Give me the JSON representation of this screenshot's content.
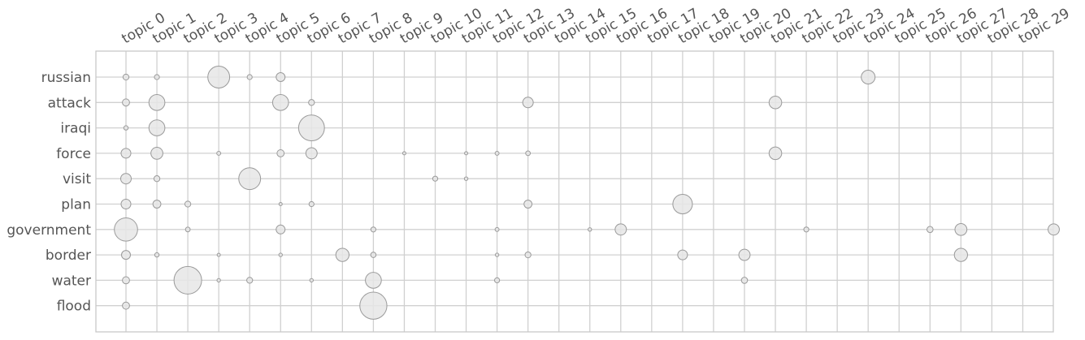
{
  "chart_data": {
    "type": "scatter",
    "subtype": "bubble-matrix",
    "title": "",
    "xlabel": "",
    "ylabel": "",
    "grid": true,
    "legend": "none",
    "colors": {
      "bubble_fill": "#e6e6e6",
      "bubble_stroke": "#9a9a9a",
      "grid": "#d0d0d0",
      "text": "#555555"
    },
    "topics": [
      "topic 0",
      "topic 1",
      "topic 2",
      "topic 3",
      "topic 4",
      "topic 5",
      "topic 6",
      "topic 7",
      "topic 8",
      "topic 9",
      "topic 10",
      "topic 11",
      "topic 12",
      "topic 13",
      "topic 14",
      "topic 15",
      "topic 16",
      "topic 17",
      "topic 18",
      "topic 19",
      "topic 20",
      "topic 21",
      "topic 22",
      "topic 23",
      "topic 24",
      "topic 25",
      "topic 26",
      "topic 27",
      "topic 28",
      "topic 29"
    ],
    "words": [
      "russian",
      "attack",
      "iraqi",
      "force",
      "visit",
      "plan",
      "government",
      "border",
      "water",
      "flood"
    ],
    "points": [
      {
        "word": "russian",
        "topic": 0,
        "weight": 0.011
      },
      {
        "word": "russian",
        "topic": 1,
        "weight": 0.008
      },
      {
        "word": "russian",
        "topic": 3,
        "weight": 0.15
      },
      {
        "word": "russian",
        "topic": 4,
        "weight": 0.008
      },
      {
        "word": "russian",
        "topic": 5,
        "weight": 0.025
      },
      {
        "word": "russian",
        "topic": 24,
        "weight": 0.06
      },
      {
        "word": "attack",
        "topic": 0,
        "weight": 0.016
      },
      {
        "word": "attack",
        "topic": 1,
        "weight": 0.08
      },
      {
        "word": "attack",
        "topic": 5,
        "weight": 0.08
      },
      {
        "word": "attack",
        "topic": 6,
        "weight": 0.011
      },
      {
        "word": "attack",
        "topic": 13,
        "weight": 0.035
      },
      {
        "word": "attack",
        "topic": 21,
        "weight": 0.05
      },
      {
        "word": "iraqi",
        "topic": 0,
        "weight": 0.006
      },
      {
        "word": "iraqi",
        "topic": 1,
        "weight": 0.08
      },
      {
        "word": "iraqi",
        "topic": 6,
        "weight": 0.21
      },
      {
        "word": "force",
        "topic": 0,
        "weight": 0.03
      },
      {
        "word": "force",
        "topic": 1,
        "weight": 0.045
      },
      {
        "word": "force",
        "topic": 3,
        "weight": 0.005
      },
      {
        "word": "force",
        "topic": 5,
        "weight": 0.016
      },
      {
        "word": "force",
        "topic": 6,
        "weight": 0.04
      },
      {
        "word": "force",
        "topic": 9,
        "weight": 0.002
      },
      {
        "word": "force",
        "topic": 11,
        "weight": 0.002
      },
      {
        "word": "force",
        "topic": 12,
        "weight": 0.005
      },
      {
        "word": "force",
        "topic": 13,
        "weight": 0.007
      },
      {
        "word": "force",
        "topic": 21,
        "weight": 0.05
      },
      {
        "word": "visit",
        "topic": 0,
        "weight": 0.035
      },
      {
        "word": "visit",
        "topic": 1,
        "weight": 0.011
      },
      {
        "word": "visit",
        "topic": 4,
        "weight": 0.15
      },
      {
        "word": "visit",
        "topic": 10,
        "weight": 0.008
      },
      {
        "word": "visit",
        "topic": 11,
        "weight": 0.004
      },
      {
        "word": "plan",
        "topic": 0,
        "weight": 0.03
      },
      {
        "word": "plan",
        "topic": 1,
        "weight": 0.02
      },
      {
        "word": "plan",
        "topic": 2,
        "weight": 0.011
      },
      {
        "word": "plan",
        "topic": 5,
        "weight": 0.003
      },
      {
        "word": "plan",
        "topic": 6,
        "weight": 0.008
      },
      {
        "word": "plan",
        "topic": 13,
        "weight": 0.02
      },
      {
        "word": "plan",
        "topic": 18,
        "weight": 0.12
      },
      {
        "word": "government",
        "topic": 0,
        "weight": 0.17
      },
      {
        "word": "government",
        "topic": 2,
        "weight": 0.007
      },
      {
        "word": "government",
        "topic": 5,
        "weight": 0.025
      },
      {
        "word": "government",
        "topic": 8,
        "weight": 0.008
      },
      {
        "word": "government",
        "topic": 12,
        "weight": 0.005
      },
      {
        "word": "government",
        "topic": 15,
        "weight": 0.004
      },
      {
        "word": "government",
        "topic": 16,
        "weight": 0.04
      },
      {
        "word": "government",
        "topic": 22,
        "weight": 0.008
      },
      {
        "word": "government",
        "topic": 26,
        "weight": 0.012
      },
      {
        "word": "government",
        "topic": 27,
        "weight": 0.045
      },
      {
        "word": "government",
        "topic": 30,
        "weight": 0.04
      },
      {
        "word": "border",
        "topic": 0,
        "weight": 0.025
      },
      {
        "word": "border",
        "topic": 1,
        "weight": 0.006
      },
      {
        "word": "border",
        "topic": 3,
        "weight": 0.003
      },
      {
        "word": "border",
        "topic": 5,
        "weight": 0.004
      },
      {
        "word": "border",
        "topic": 7,
        "weight": 0.055
      },
      {
        "word": "border",
        "topic": 8,
        "weight": 0.009
      },
      {
        "word": "border",
        "topic": 12,
        "weight": 0.004
      },
      {
        "word": "border",
        "topic": 13,
        "weight": 0.011
      },
      {
        "word": "border",
        "topic": 18,
        "weight": 0.03
      },
      {
        "word": "border",
        "topic": 20,
        "weight": 0.04
      },
      {
        "word": "border",
        "topic": 27,
        "weight": 0.055
      },
      {
        "word": "water",
        "topic": 0,
        "weight": 0.016
      },
      {
        "word": "water",
        "topic": 2,
        "weight": 0.24
      },
      {
        "word": "water",
        "topic": 3,
        "weight": 0.004
      },
      {
        "word": "water",
        "topic": 4,
        "weight": 0.011
      },
      {
        "word": "water",
        "topic": 6,
        "weight": 0.004
      },
      {
        "word": "water",
        "topic": 8,
        "weight": 0.08
      },
      {
        "word": "water",
        "topic": 12,
        "weight": 0.008
      },
      {
        "word": "water",
        "topic": 20,
        "weight": 0.012
      },
      {
        "word": "flood",
        "topic": 0,
        "weight": 0.016
      },
      {
        "word": "flood",
        "topic": 8,
        "weight": 0.23
      }
    ]
  }
}
